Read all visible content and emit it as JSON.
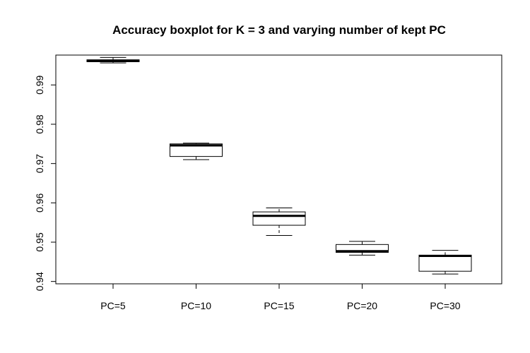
{
  "chart_data": {
    "type": "boxplot",
    "title": "Accuracy boxplot for K = 3 and varying number of kept PC",
    "xlabel": "",
    "ylabel": "",
    "categories": [
      "PC=5",
      "PC=10",
      "PC=15",
      "PC=20",
      "PC=30"
    ],
    "boxes": [
      {
        "category": "PC=5",
        "min": 0.9956,
        "q1": 0.9959,
        "median": 0.9961,
        "q3": 0.9964,
        "max": 0.997
      },
      {
        "category": "PC=10",
        "min": 0.971,
        "q1": 0.9718,
        "median": 0.9746,
        "q3": 0.975,
        "max": 0.9752
      },
      {
        "category": "PC=15",
        "min": 0.9517,
        "q1": 0.9543,
        "median": 0.9567,
        "q3": 0.9577,
        "max": 0.9587
      },
      {
        "category": "PC=20",
        "min": 0.9467,
        "q1": 0.9474,
        "median": 0.9477,
        "q3": 0.9494,
        "max": 0.9502
      },
      {
        "category": "PC=30",
        "min": 0.9419,
        "q1": 0.9426,
        "median": 0.9465,
        "q3": 0.9467,
        "max": 0.9479
      }
    ],
    "y_ticks": [
      0.94,
      0.95,
      0.96,
      0.97,
      0.98,
      0.99
    ],
    "y_tick_labels": [
      "0.94",
      "0.95",
      "0.96",
      "0.97",
      "0.98",
      "0.99"
    ],
    "ylim": [
      0.9394,
      0.9976
    ],
    "grid": false,
    "legend": "none"
  }
}
